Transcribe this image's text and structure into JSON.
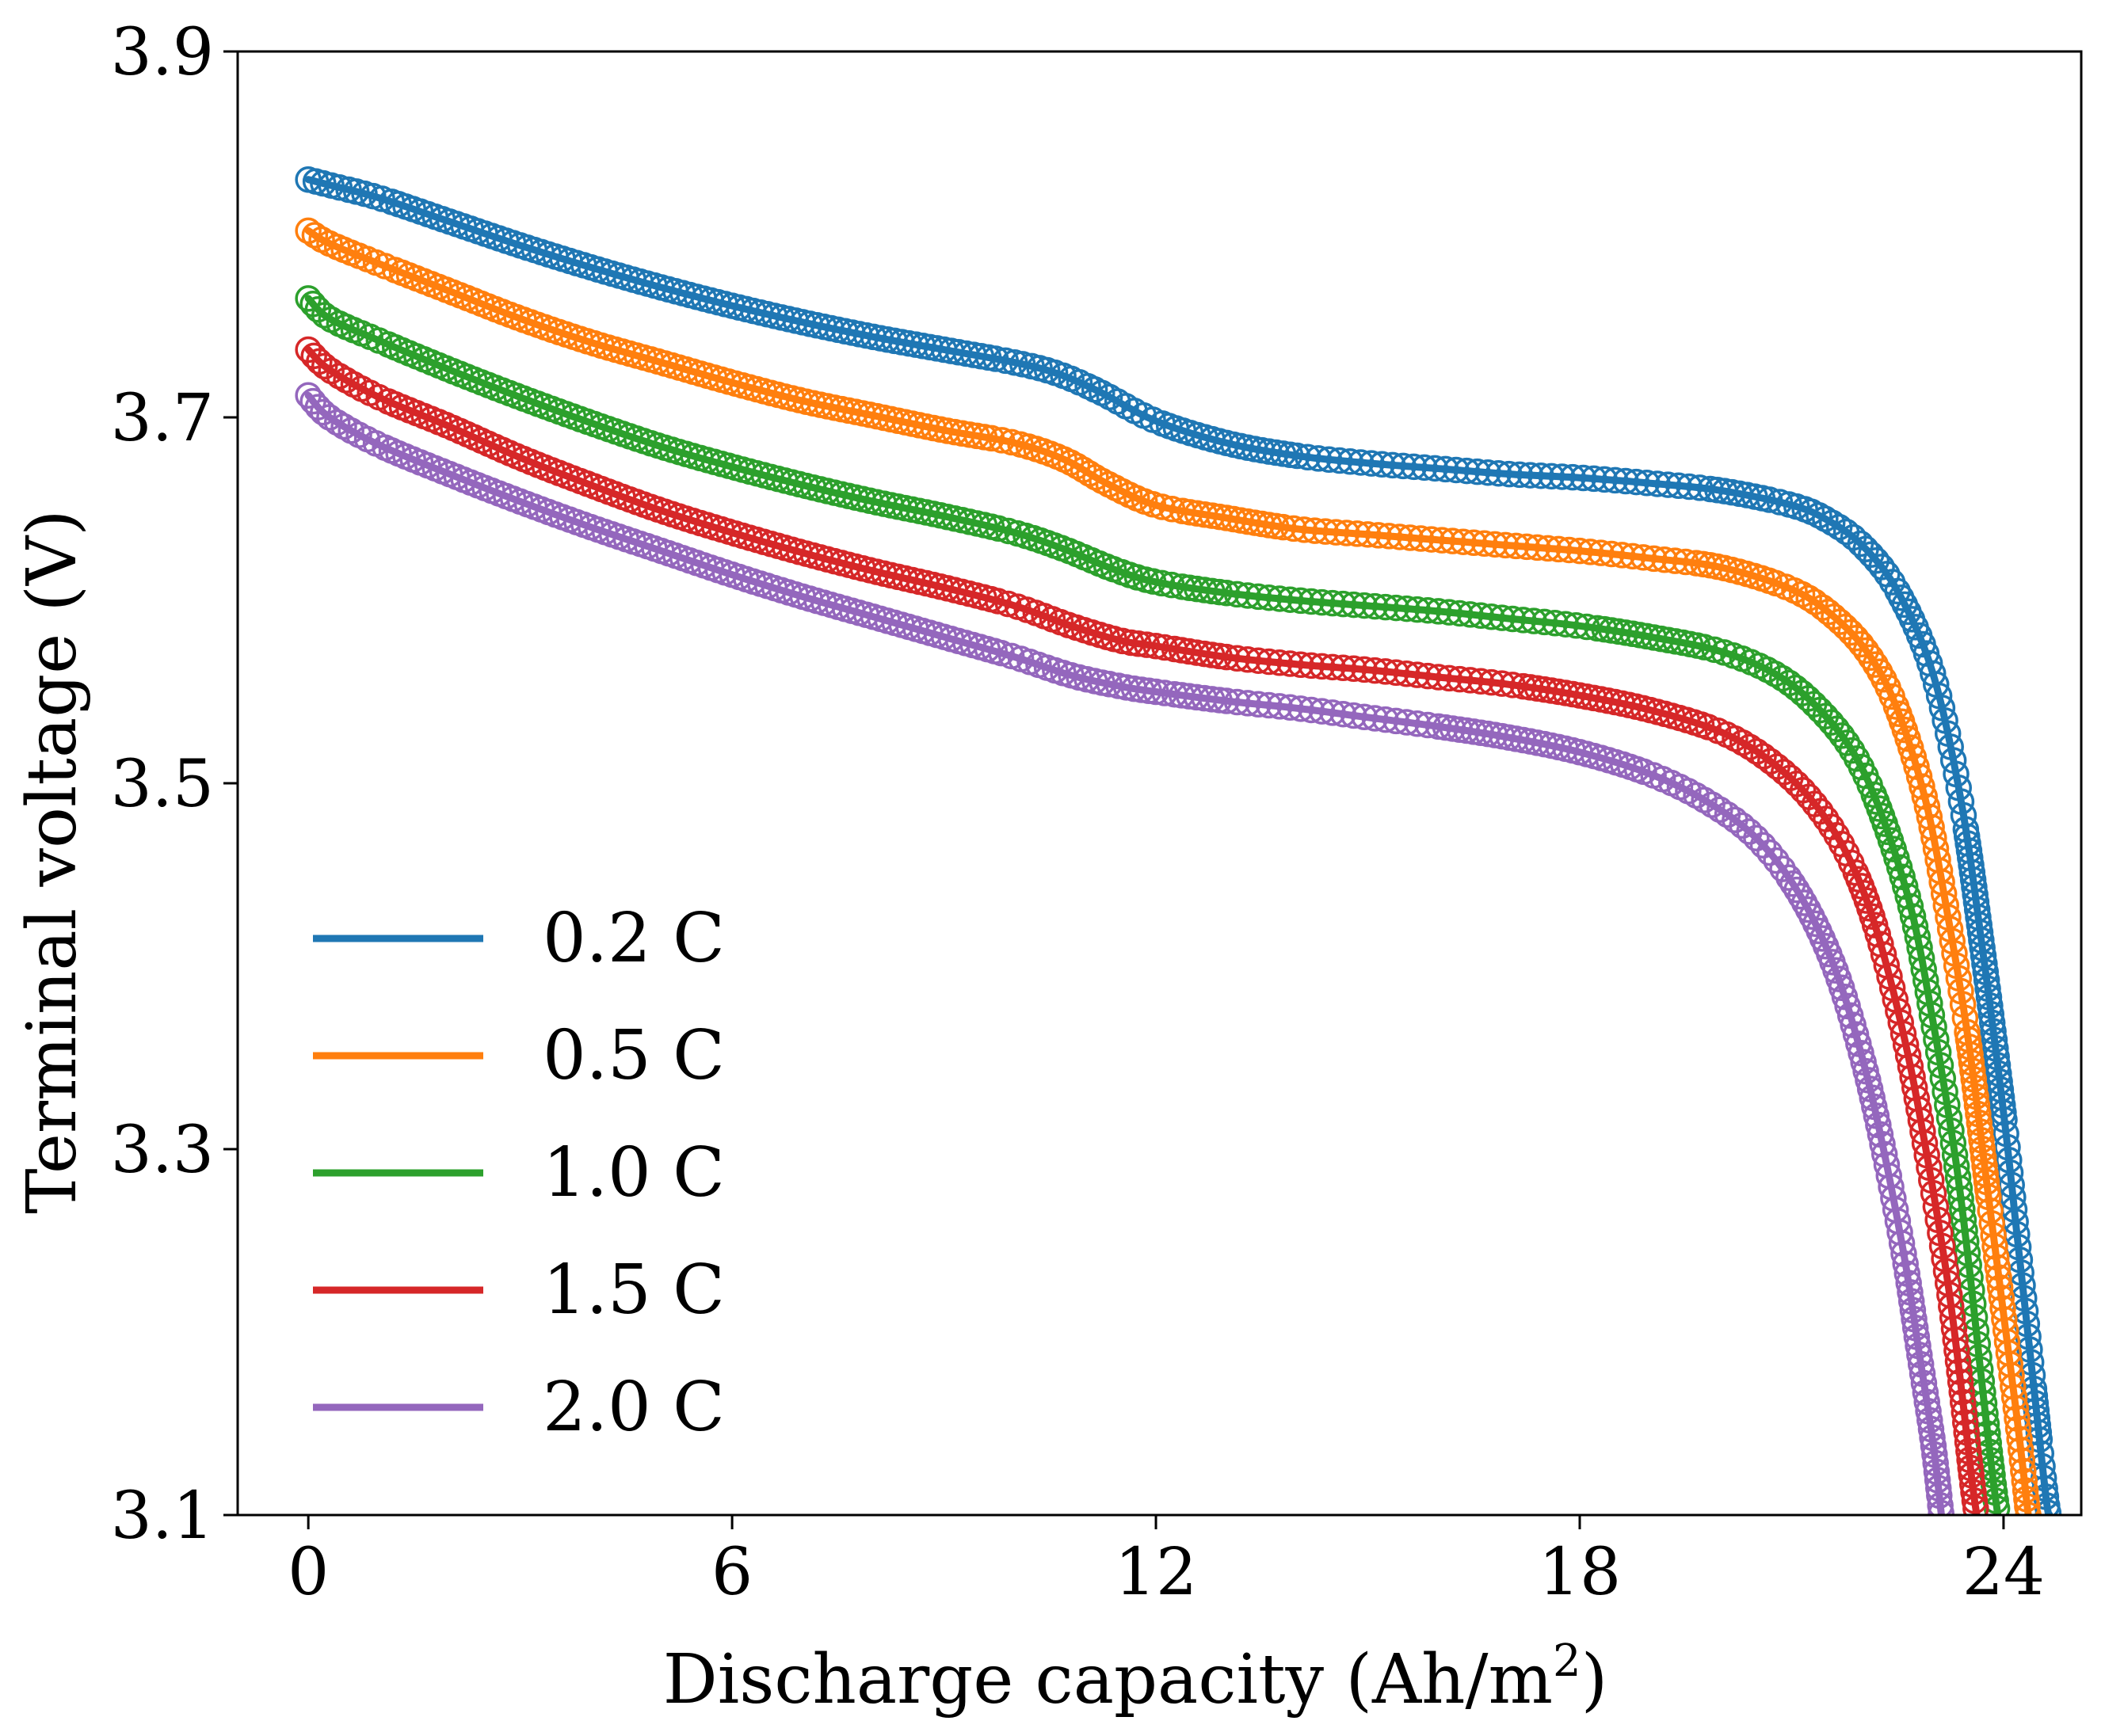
{
  "chart_data": {
    "type": "line",
    "title": "",
    "xlabel": "Discharge capacity (Ah/m",
    "xlabel_sup": "2",
    "xlabel_end": ")",
    "ylabel": "Terminal voltage (V)",
    "xlim": [
      -1,
      25.1
    ],
    "ylim": [
      3.1,
      3.9
    ],
    "xticks": [
      0,
      6,
      12,
      18,
      24
    ],
    "yticks": [
      3.1,
      3.3,
      3.5,
      3.7,
      3.9
    ],
    "xtick_labels": [
      "0",
      "6",
      "12",
      "18",
      "24"
    ],
    "ytick_labels": [
      "3.1",
      "3.3",
      "3.5",
      "3.7",
      "3.9"
    ],
    "grid": false,
    "legend_position": "lower-left",
    "markers": "open-circle",
    "series": [
      {
        "name": "0.2 C",
        "color": "#1f77b4",
        "points": [
          [
            0,
            3.83
          ],
          [
            0.3,
            3.827
          ],
          [
            1,
            3.82
          ],
          [
            2,
            3.807
          ],
          [
            3,
            3.794
          ],
          [
            4,
            3.782
          ],
          [
            5,
            3.771
          ],
          [
            6,
            3.761
          ],
          [
            7,
            3.752
          ],
          [
            8,
            3.744
          ],
          [
            9,
            3.737
          ],
          [
            10,
            3.73
          ],
          [
            10.6,
            3.724
          ],
          [
            11.2,
            3.714
          ],
          [
            12,
            3.698
          ],
          [
            13,
            3.686
          ],
          [
            14,
            3.679
          ],
          [
            15,
            3.675
          ],
          [
            16,
            3.672
          ],
          [
            17,
            3.669
          ],
          [
            18,
            3.667
          ],
          [
            19,
            3.664
          ],
          [
            20,
            3.66
          ],
          [
            21,
            3.652
          ],
          [
            21.5,
            3.644
          ],
          [
            22,
            3.63
          ],
          [
            22.5,
            3.605
          ],
          [
            23,
            3.56
          ],
          [
            23.4,
            3.49
          ],
          [
            23.7,
            3.41
          ],
          [
            24,
            3.32
          ],
          [
            24.2,
            3.25
          ],
          [
            24.4,
            3.18
          ],
          [
            24.6,
            3.11
          ],
          [
            24.65,
            3.1
          ]
        ]
      },
      {
        "name": "0.5 C",
        "color": "#ff7f0e",
        "points": [
          [
            0,
            3.802
          ],
          [
            0.3,
            3.795
          ],
          [
            1,
            3.784
          ],
          [
            2,
            3.769
          ],
          [
            3,
            3.754
          ],
          [
            4,
            3.741
          ],
          [
            5,
            3.73
          ],
          [
            6,
            3.719
          ],
          [
            7,
            3.709
          ],
          [
            8,
            3.701
          ],
          [
            9,
            3.693
          ],
          [
            10,
            3.686
          ],
          [
            10.7,
            3.677
          ],
          [
            11.3,
            3.664
          ],
          [
            12,
            3.652
          ],
          [
            13,
            3.645
          ],
          [
            14,
            3.639
          ],
          [
            15,
            3.636
          ],
          [
            16,
            3.633
          ],
          [
            17,
            3.63
          ],
          [
            18,
            3.627
          ],
          [
            19,
            3.623
          ],
          [
            20,
            3.618
          ],
          [
            21,
            3.606
          ],
          [
            21.6,
            3.591
          ],
          [
            22.1,
            3.57
          ],
          [
            22.5,
            3.54
          ],
          [
            22.9,
            3.49
          ],
          [
            23.2,
            3.43
          ],
          [
            23.5,
            3.36
          ],
          [
            23.8,
            3.27
          ],
          [
            24,
            3.21
          ],
          [
            24.2,
            3.15
          ],
          [
            24.35,
            3.1
          ]
        ]
      },
      {
        "name": "1.0 C",
        "color": "#2ca02c",
        "points": [
          [
            0,
            3.765
          ],
          [
            0.3,
            3.754
          ],
          [
            1,
            3.742
          ],
          [
            2,
            3.726
          ],
          [
            3,
            3.711
          ],
          [
            4,
            3.697
          ],
          [
            5,
            3.684
          ],
          [
            6,
            3.673
          ],
          [
            7,
            3.663
          ],
          [
            8,
            3.654
          ],
          [
            9,
            3.646
          ],
          [
            10,
            3.637
          ],
          [
            10.7,
            3.628
          ],
          [
            11.4,
            3.617
          ],
          [
            12,
            3.61
          ],
          [
            13,
            3.604
          ],
          [
            14,
            3.6
          ],
          [
            15,
            3.597
          ],
          [
            16,
            3.594
          ],
          [
            17,
            3.59
          ],
          [
            18,
            3.586
          ],
          [
            19,
            3.58
          ],
          [
            20,
            3.572
          ],
          [
            20.8,
            3.559
          ],
          [
            21.4,
            3.54
          ],
          [
            21.9,
            3.515
          ],
          [
            22.3,
            3.48
          ],
          [
            22.7,
            3.43
          ],
          [
            23,
            3.37
          ],
          [
            23.3,
            3.3
          ],
          [
            23.5,
            3.24
          ],
          [
            23.7,
            3.17
          ],
          [
            23.85,
            3.12
          ],
          [
            23.92,
            3.1
          ]
        ]
      },
      {
        "name": "1.5 C",
        "color": "#d62728",
        "points": [
          [
            0,
            3.737
          ],
          [
            0.3,
            3.726
          ],
          [
            1,
            3.711
          ],
          [
            2,
            3.695
          ],
          [
            3,
            3.678
          ],
          [
            4,
            3.663
          ],
          [
            5,
            3.649
          ],
          [
            6,
            3.637
          ],
          [
            7,
            3.626
          ],
          [
            8,
            3.616
          ],
          [
            9,
            3.607
          ],
          [
            10,
            3.597
          ],
          [
            10.8,
            3.586
          ],
          [
            11.5,
            3.578
          ],
          [
            12,
            3.575
          ],
          [
            13,
            3.569
          ],
          [
            14,
            3.565
          ],
          [
            15,
            3.562
          ],
          [
            16,
            3.558
          ],
          [
            17,
            3.554
          ],
          [
            18,
            3.548
          ],
          [
            19,
            3.54
          ],
          [
            20,
            3.528
          ],
          [
            20.7,
            3.512
          ],
          [
            21.3,
            3.49
          ],
          [
            21.8,
            3.46
          ],
          [
            22.2,
            3.42
          ],
          [
            22.6,
            3.36
          ],
          [
            22.9,
            3.3
          ],
          [
            23.2,
            3.23
          ],
          [
            23.4,
            3.17
          ],
          [
            23.55,
            3.12
          ],
          [
            23.62,
            3.1
          ]
        ]
      },
      {
        "name": "2.0 C",
        "color": "#9467bd",
        "points": [
          [
            0,
            3.712
          ],
          [
            0.3,
            3.7
          ],
          [
            1,
            3.685
          ],
          [
            2,
            3.669
          ],
          [
            3,
            3.654
          ],
          [
            4,
            3.64
          ],
          [
            5,
            3.627
          ],
          [
            6,
            3.614
          ],
          [
            7,
            3.602
          ],
          [
            8,
            3.591
          ],
          [
            9,
            3.58
          ],
          [
            10,
            3.569
          ],
          [
            10.8,
            3.559
          ],
          [
            11.5,
            3.553
          ],
          [
            12,
            3.55
          ],
          [
            13,
            3.545
          ],
          [
            14,
            3.541
          ],
          [
            15,
            3.536
          ],
          [
            16,
            3.531
          ],
          [
            17,
            3.525
          ],
          [
            18,
            3.517
          ],
          [
            19,
            3.505
          ],
          [
            19.8,
            3.49
          ],
          [
            20.5,
            3.47
          ],
          [
            21.1,
            3.44
          ],
          [
            21.6,
            3.4
          ],
          [
            22,
            3.35
          ],
          [
            22.3,
            3.3
          ],
          [
            22.6,
            3.24
          ],
          [
            22.8,
            3.19
          ],
          [
            23,
            3.14
          ],
          [
            23.12,
            3.1
          ]
        ]
      }
    ]
  }
}
